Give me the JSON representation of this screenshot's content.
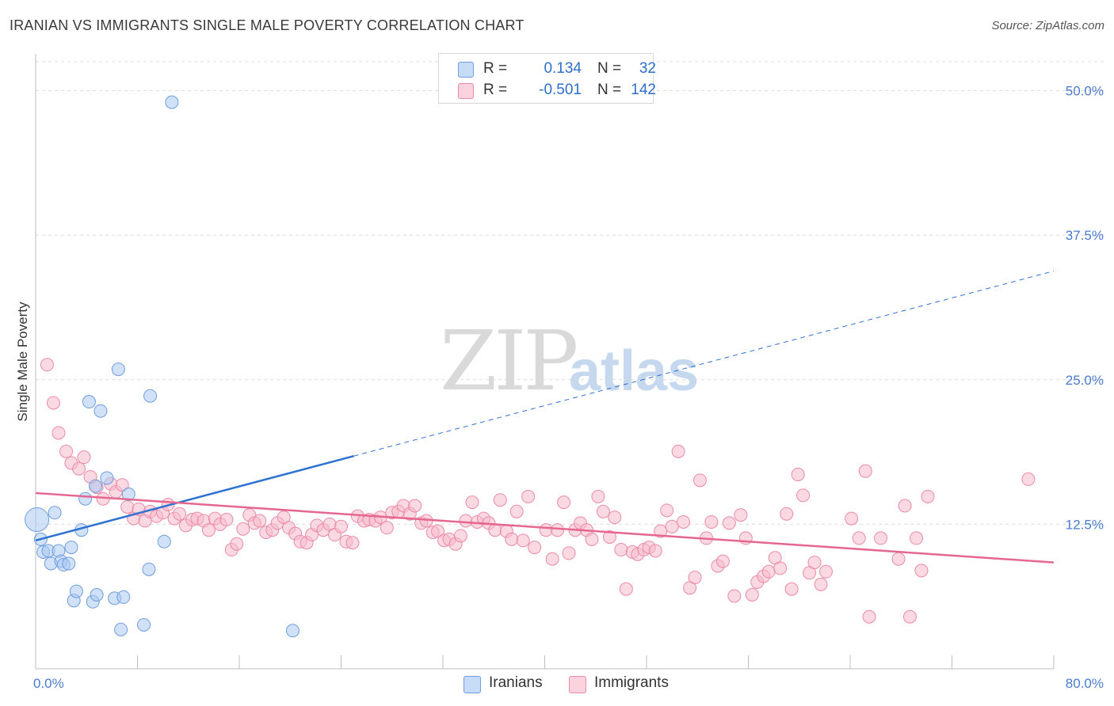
{
  "header": {
    "title": "IRANIAN VS IMMIGRANTS SINGLE MALE POVERTY CORRELATION CHART",
    "source": "Source: ZipAtlas.com"
  },
  "watermark": {
    "zip": "ZIP",
    "atlas": "atlas"
  },
  "legend_top": {
    "rows": [
      {
        "r_label": "R =",
        "r_value": "0.134",
        "n_label": "N =",
        "n_value": "32",
        "color": "#aac8f2"
      },
      {
        "r_label": "R =",
        "r_value": "-0.501",
        "n_label": "N =",
        "n_value": "142",
        "color": "#f7b9cb"
      }
    ]
  },
  "legend_bottom": {
    "items": [
      {
        "label": "Iranians",
        "color": "#aac8f2"
      },
      {
        "label": "Immigrants",
        "color": "#f7b9cb"
      }
    ]
  },
  "chart_data": {
    "type": "scatter",
    "title": "IRANIAN VS IMMIGRANTS SINGLE MALE POVERTY CORRELATION CHART",
    "xlabel": "",
    "ylabel": "Single Male Poverty",
    "xlim": [
      0,
      80
    ],
    "ylim": [
      0,
      52.5
    ],
    "x_tick_labels": [
      "0.0%",
      "80.0%"
    ],
    "y_ticks": [
      12.5,
      25.0,
      37.5,
      50.0
    ],
    "y_tick_labels": [
      "12.5%",
      "25.0%",
      "37.5%",
      "50.0%"
    ],
    "grid": true,
    "legend_placement": "bottom",
    "series": [
      {
        "name": "Iranians",
        "color": "#aac8f2",
        "stroke": "#6f9ee0",
        "trend_color": "#2f72d0",
        "trend": {
          "x0": 0,
          "y0": 11.1,
          "x1": 25,
          "y1": 18.4,
          "dash_to_x": 80,
          "dash_to_y": 34.4
        },
        "points": [
          [
            0.1,
            12.9
          ],
          [
            0.4,
            11.2
          ],
          [
            0.6,
            10.1
          ],
          [
            1.0,
            10.2
          ],
          [
            1.2,
            9.1
          ],
          [
            1.5,
            13.5
          ],
          [
            1.8,
            10.2
          ],
          [
            2.0,
            9.3
          ],
          [
            2.2,
            9.0
          ],
          [
            2.6,
            9.1
          ],
          [
            2.8,
            10.5
          ],
          [
            3.0,
            5.9
          ],
          [
            3.2,
            6.7
          ],
          [
            3.6,
            12.0
          ],
          [
            3.9,
            14.7
          ],
          [
            4.2,
            23.1
          ],
          [
            4.5,
            5.8
          ],
          [
            4.8,
            6.4
          ],
          [
            5.1,
            22.3
          ],
          [
            5.6,
            16.5
          ],
          [
            4.7,
            15.8
          ],
          [
            6.2,
            6.1
          ],
          [
            6.5,
            25.9
          ],
          [
            6.7,
            3.4
          ],
          [
            6.9,
            6.2
          ],
          [
            7.3,
            15.1
          ],
          [
            8.5,
            3.8
          ],
          [
            8.9,
            8.6
          ],
          [
            9.0,
            23.6
          ],
          [
            10.1,
            11.0
          ],
          [
            10.7,
            49.0
          ],
          [
            20.2,
            3.3
          ]
        ]
      },
      {
        "name": "Immigrants",
        "color": "#f7b9cb",
        "stroke": "#ec8aa8",
        "trend_color": "#e5678f",
        "trend": {
          "x0": 0,
          "y0": 15.2,
          "x1": 80,
          "y1": 9.2
        },
        "points": [
          [
            0.9,
            26.3
          ],
          [
            1.4,
            23.0
          ],
          [
            1.8,
            20.4
          ],
          [
            2.4,
            18.8
          ],
          [
            2.8,
            17.8
          ],
          [
            3.4,
            17.3
          ],
          [
            3.8,
            18.3
          ],
          [
            4.3,
            16.6
          ],
          [
            4.8,
            15.7
          ],
          [
            5.3,
            14.7
          ],
          [
            5.9,
            16.0
          ],
          [
            6.3,
            15.3
          ],
          [
            6.8,
            15.9
          ],
          [
            7.2,
            14.0
          ],
          [
            7.7,
            13.0
          ],
          [
            8.1,
            13.8
          ],
          [
            8.6,
            12.8
          ],
          [
            9.0,
            13.6
          ],
          [
            9.5,
            13.2
          ],
          [
            10.0,
            13.5
          ],
          [
            10.4,
            14.2
          ],
          [
            10.9,
            13.0
          ],
          [
            11.3,
            13.4
          ],
          [
            11.8,
            12.4
          ],
          [
            12.3,
            12.9
          ],
          [
            12.7,
            13.0
          ],
          [
            13.2,
            12.8
          ],
          [
            13.6,
            12.0
          ],
          [
            14.1,
            13.0
          ],
          [
            14.5,
            12.5
          ],
          [
            15.0,
            12.9
          ],
          [
            15.4,
            10.3
          ],
          [
            15.8,
            10.8
          ],
          [
            16.3,
            12.1
          ],
          [
            16.8,
            13.3
          ],
          [
            17.2,
            12.6
          ],
          [
            17.6,
            12.8
          ],
          [
            18.1,
            11.8
          ],
          [
            18.6,
            12.0
          ],
          [
            19.0,
            12.6
          ],
          [
            19.5,
            13.1
          ],
          [
            19.9,
            12.2
          ],
          [
            20.4,
            11.7
          ],
          [
            20.8,
            11.0
          ],
          [
            21.3,
            10.9
          ],
          [
            21.7,
            11.6
          ],
          [
            22.1,
            12.4
          ],
          [
            22.6,
            12.0
          ],
          [
            23.1,
            12.5
          ],
          [
            23.5,
            11.6
          ],
          [
            24.0,
            12.3
          ],
          [
            24.4,
            11.0
          ],
          [
            24.9,
            10.9
          ],
          [
            25.3,
            13.2
          ],
          [
            25.8,
            12.8
          ],
          [
            26.2,
            12.9
          ],
          [
            26.7,
            12.8
          ],
          [
            27.1,
            13.1
          ],
          [
            27.6,
            12.2
          ],
          [
            28.0,
            13.5
          ],
          [
            28.5,
            13.6
          ],
          [
            28.9,
            14.1
          ],
          [
            29.4,
            13.4
          ],
          [
            29.8,
            14.1
          ],
          [
            30.3,
            12.6
          ],
          [
            30.7,
            12.8
          ],
          [
            31.2,
            11.8
          ],
          [
            31.6,
            11.9
          ],
          [
            32.1,
            11.1
          ],
          [
            32.5,
            11.2
          ],
          [
            33.0,
            10.8
          ],
          [
            33.4,
            11.5
          ],
          [
            33.8,
            12.8
          ],
          [
            34.3,
            14.4
          ],
          [
            34.7,
            12.7
          ],
          [
            35.2,
            13.0
          ],
          [
            35.6,
            12.6
          ],
          [
            36.1,
            12.0
          ],
          [
            36.5,
            14.6
          ],
          [
            37.0,
            11.9
          ],
          [
            37.4,
            11.2
          ],
          [
            37.8,
            13.6
          ],
          [
            38.3,
            11.1
          ],
          [
            38.7,
            14.9
          ],
          [
            39.2,
            10.5
          ],
          [
            40.1,
            12.0
          ],
          [
            40.6,
            9.5
          ],
          [
            41.0,
            12.0
          ],
          [
            41.5,
            14.4
          ],
          [
            41.9,
            10.0
          ],
          [
            42.4,
            12.0
          ],
          [
            42.8,
            12.6
          ],
          [
            43.3,
            12.0
          ],
          [
            43.7,
            11.2
          ],
          [
            44.2,
            14.9
          ],
          [
            44.6,
            13.6
          ],
          [
            45.1,
            11.4
          ],
          [
            45.5,
            13.1
          ],
          [
            46.0,
            10.3
          ],
          [
            46.4,
            6.9
          ],
          [
            46.9,
            10.1
          ],
          [
            47.3,
            9.9
          ],
          [
            47.8,
            10.3
          ],
          [
            48.2,
            10.5
          ],
          [
            48.7,
            10.2
          ],
          [
            49.1,
            11.9
          ],
          [
            49.6,
            13.7
          ],
          [
            50.0,
            12.3
          ],
          [
            50.5,
            18.8
          ],
          [
            50.9,
            12.7
          ],
          [
            51.4,
            7.0
          ],
          [
            51.8,
            7.9
          ],
          [
            52.2,
            16.3
          ],
          [
            52.7,
            11.3
          ],
          [
            53.1,
            12.7
          ],
          [
            53.6,
            8.9
          ],
          [
            54.0,
            9.3
          ],
          [
            54.5,
            12.6
          ],
          [
            54.9,
            6.3
          ],
          [
            55.4,
            13.3
          ],
          [
            55.8,
            11.3
          ],
          [
            56.3,
            6.4
          ],
          [
            56.7,
            7.5
          ],
          [
            57.2,
            8.0
          ],
          [
            57.6,
            8.4
          ],
          [
            58.1,
            9.6
          ],
          [
            58.5,
            8.7
          ],
          [
            59.0,
            13.4
          ],
          [
            59.4,
            6.9
          ],
          [
            59.9,
            16.8
          ],
          [
            60.3,
            15.0
          ],
          [
            60.8,
            8.3
          ],
          [
            61.2,
            9.2
          ],
          [
            61.7,
            7.3
          ],
          [
            62.1,
            8.4
          ],
          [
            64.1,
            13.0
          ],
          [
            64.7,
            11.3
          ],
          [
            65.2,
            17.1
          ],
          [
            65.5,
            4.5
          ],
          [
            66.4,
            11.3
          ],
          [
            67.8,
            9.5
          ],
          [
            68.3,
            14.1
          ],
          [
            68.7,
            4.5
          ],
          [
            69.2,
            11.3
          ],
          [
            69.6,
            8.5
          ],
          [
            70.1,
            14.9
          ],
          [
            78.0,
            16.4
          ]
        ]
      }
    ]
  }
}
